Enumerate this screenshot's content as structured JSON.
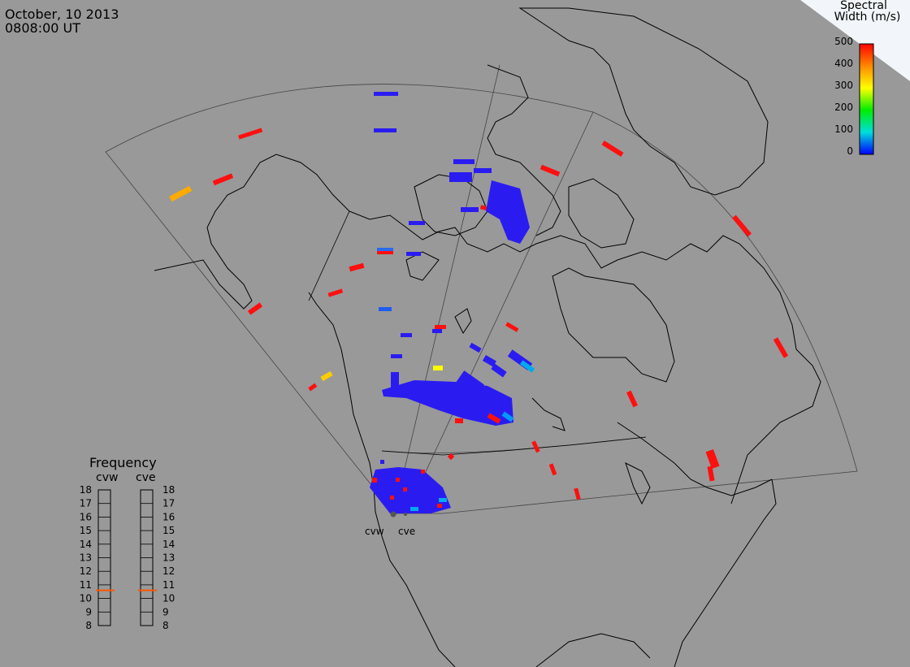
{
  "header": {
    "date": "October, 10 2013",
    "time": "0808:00 UT"
  },
  "colorbar": {
    "title_line1": "Spectral",
    "title_line2": "Width (m/s)",
    "ticks": [
      "500",
      "400",
      "300",
      "200",
      "100",
      "0"
    ],
    "colors": [
      "#ff0000",
      "#ffaa00",
      "#ffff00",
      "#00ee00",
      "#00dddd",
      "#0000ff"
    ]
  },
  "frequency_panel": {
    "title": "Frequency",
    "radars": [
      {
        "name": "cvw",
        "tuned_mhz": 10.6
      },
      {
        "name": "cve",
        "tuned_mhz": 10.6
      }
    ],
    "ticks": [
      "18",
      "17",
      "16",
      "15",
      "14",
      "13",
      "12",
      "11",
      "10",
      "9",
      "8"
    ]
  },
  "radar_labels": [
    "cvw",
    "cve"
  ],
  "colors": {
    "background": "#999999",
    "coastline": "#000000",
    "fov": "#444444",
    "low_width": "#2a1cf0",
    "high_width": "#ff0f0f",
    "medium_width": "#ffaa00",
    "yellow": "#ffff00",
    "frequency_marker": "#ff5500"
  }
}
